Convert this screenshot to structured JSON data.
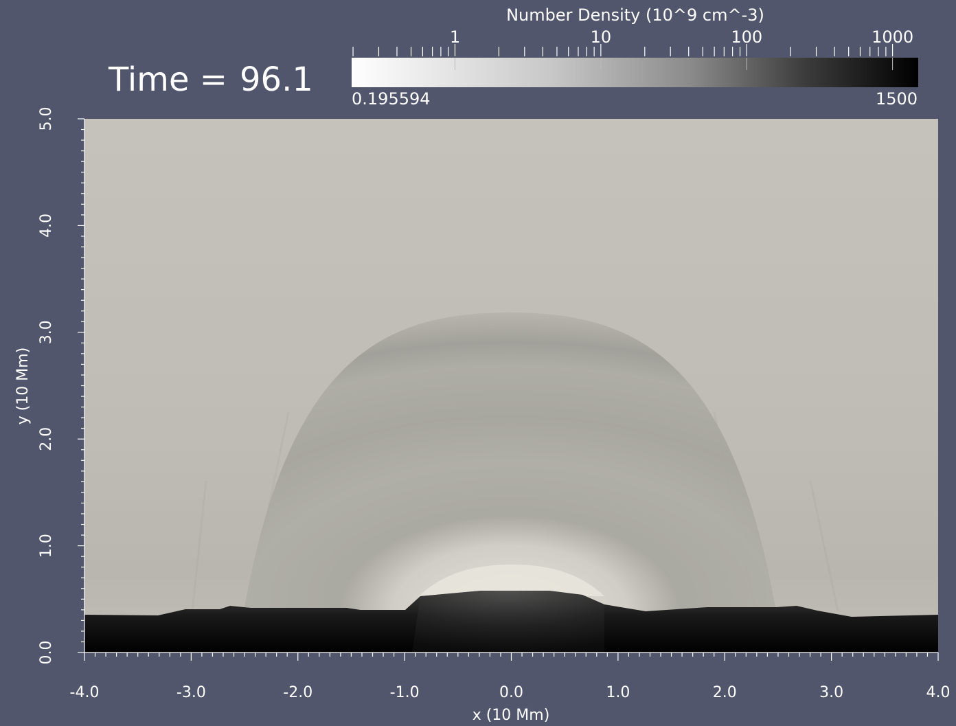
{
  "time": {
    "label": "Time =",
    "value": "96.1"
  },
  "colorbar": {
    "title": "Number Density  (10^9 cm^-3)",
    "scale": "log",
    "min_label": "0.195594",
    "max_label": "1500",
    "range": [
      0.195594,
      1500
    ],
    "major_ticks": [
      {
        "value": 1,
        "label": "1"
      },
      {
        "value": 10,
        "label": "10"
      },
      {
        "value": 100,
        "label": "100"
      },
      {
        "value": 1000,
        "label": "1000"
      }
    ],
    "colors": {
      "low": "#ffffff",
      "high": "#000000"
    }
  },
  "chart_data": {
    "type": "heatmap",
    "variable": "Number Density",
    "units": "10^9 cm^-3",
    "x": {
      "label": "x (10 Mm)",
      "range": [
        -4.0,
        4.0
      ],
      "ticks": [
        "-4.0",
        "-3.0",
        "-2.0",
        "-1.0",
        "0.0",
        "1.0",
        "2.0",
        "3.0",
        "4.0"
      ]
    },
    "y": {
      "label": "y (10 Mm)",
      "range": [
        0.0,
        5.0
      ],
      "ticks": [
        "0.0",
        "1.0",
        "2.0",
        "3.0",
        "4.0",
        "5.0"
      ]
    },
    "colormap": "grayscale (white = low, black = high)",
    "description_values": {
      "corona_background_density": 3,
      "loop_apex_height": 3.05,
      "loop_footpoint_x": [
        -2.6,
        2.6
      ],
      "chromosphere_top_height": 0.42,
      "central_bump_height": 0.58
    }
  }
}
